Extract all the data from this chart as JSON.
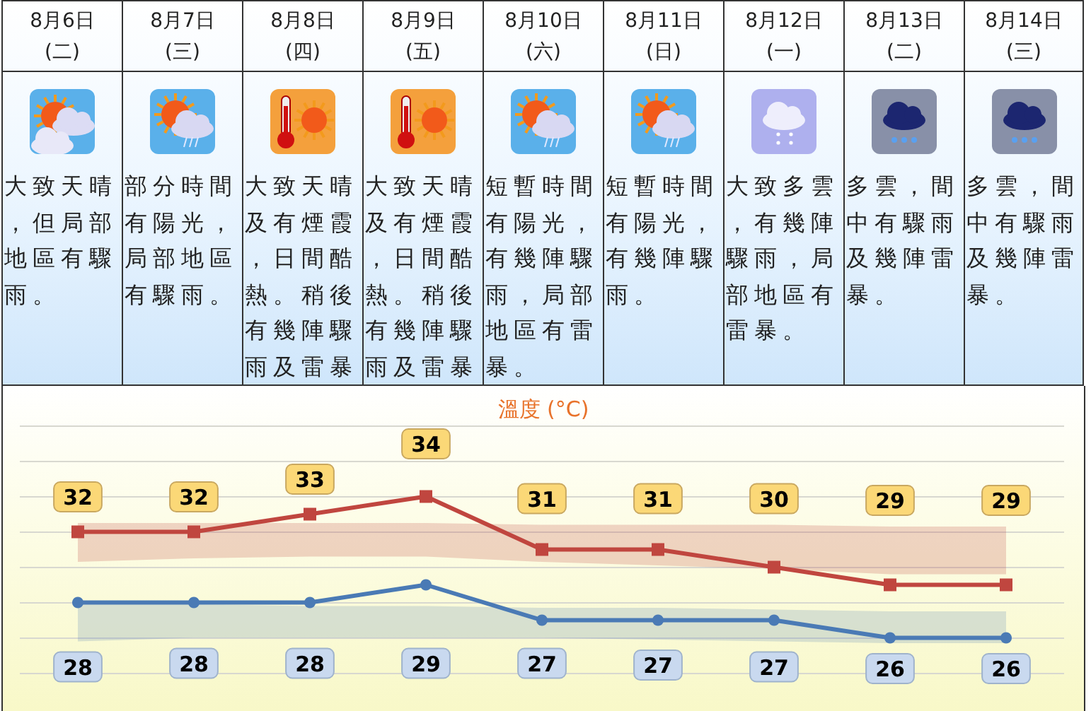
{
  "chart_data": [
    {
      "type": "other",
      "categories": [
        "8月6日",
        "8月7日",
        "8月8日",
        "8月9日",
        "8月10日",
        "8月11日",
        "8月12日",
        "8月13日",
        "8月14日"
      ],
      "annotations": [
        "(二)",
        "(三)",
        "(四)",
        "(五)",
        "(六)",
        "(日)",
        "(一)",
        "(二)",
        "(三)",
        "大致天晴，但局部地區有驟雨。",
        "部分時間有陽光，局部地區有驟雨。",
        "大致天晴及有煙霞，日間酷熱。稍後有幾陣驟雨及雷暴。",
        "大致天晴及有煙霞，日間酷熱。稍後有幾陣驟雨及雷暴。",
        "短暫時間有陽光，有幾陣驟雨，局部地區有雷暴。",
        "短暫時間有陽光，有幾陣驟雨。",
        "大致多雲，有幾陣驟雨，局部地區有雷暴。",
        "多雲，間中有驟雨及幾陣雷暴。",
        "多雲，間中有驟雨及幾陣雷暴。"
      ]
    },
    {
      "type": "line",
      "title": "溫度 (°C)",
      "categories": [
        null,
        null,
        null,
        null,
        null,
        null,
        null,
        null,
        null
      ],
      "series": [
        {
          "color": "#c0463f",
          "marker": "square",
          "values": [
            32,
            32,
            33,
            34,
            31,
            31,
            30,
            29,
            29
          ],
          "lower": [
            30.3,
            30.5,
            30.6,
            30.6,
            30.3,
            30.1,
            29.9,
            29.6,
            29.6
          ],
          "upper": [
            32.5,
            32.5,
            32.5,
            32.5,
            32.4,
            32.4,
            32.4,
            32.3,
            32.3
          ]
        },
        {
          "color": "#4a7ab5",
          "marker": "circle",
          "values": [
            28,
            28,
            28,
            29,
            27,
            27,
            27,
            26,
            26
          ],
          "lower": [
            25.8,
            26,
            26,
            26,
            26,
            25.9,
            25.8,
            25.7,
            25.7
          ],
          "upper": [
            27.9,
            27.9,
            27.8,
            27.8,
            27.7,
            27.7,
            27.6,
            27.5,
            27.5
          ]
        }
      ],
      "data_labels": true,
      "grid": "y",
      "yticks": [
        {
          "value": 24,
          "label": null
        },
        {
          "value": 26,
          "label": null
        },
        {
          "value": 28,
          "label": null
        },
        {
          "value": 30,
          "label": null
        },
        {
          "value": 32,
          "label": null
        },
        {
          "value": 34,
          "label": null
        },
        {
          "value": 36,
          "label": null
        },
        {
          "value": 38,
          "label": null
        }
      ]
    }
  ]
}
